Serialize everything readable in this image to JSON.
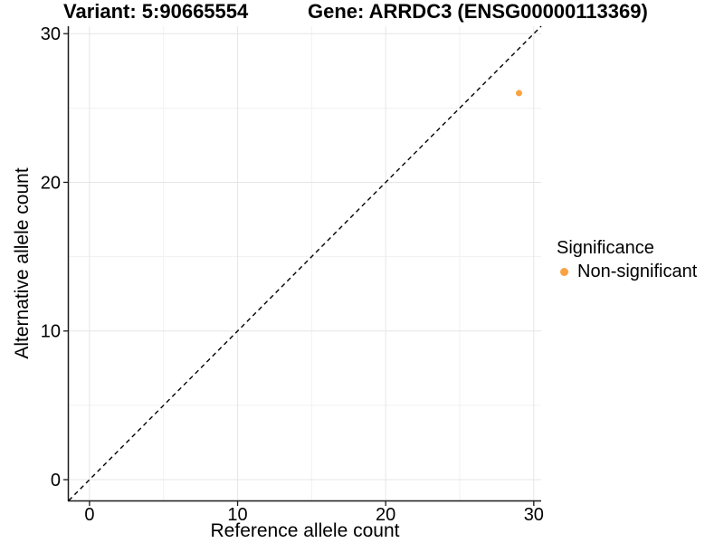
{
  "chart_data": {
    "type": "scatter",
    "title_left": "Variant: 5:90665554",
    "title_right": "Gene: ARRDC3 (ENSG00000113369)",
    "xlabel": "Reference allele count",
    "ylabel": "Alternative allele count",
    "xlim": [
      -1.4,
      30.5
    ],
    "ylim": [
      -1.4,
      30.5
    ],
    "x_ticks": [
      0,
      10,
      20,
      30
    ],
    "y_ticks": [
      0,
      10,
      20,
      30
    ],
    "grid": "major+minor",
    "reference_line": {
      "type": "identity",
      "slope": 1,
      "intercept": 0,
      "style": "dashed",
      "color": "#000000"
    },
    "series": [
      {
        "name": "Non-significant",
        "color": "#F9A242",
        "points": [
          {
            "x": 29,
            "y": 26
          }
        ]
      }
    ],
    "legend": {
      "title": "Significance",
      "position": "right",
      "items": [
        {
          "label": "Non-significant",
          "color": "#F9A242"
        }
      ]
    }
  },
  "colors": {
    "background": "#ffffff",
    "axis_line": "#1a1a1a",
    "grid_major": "#e6e6e6",
    "grid_minor": "#f1f1f1",
    "text": "#000000"
  }
}
